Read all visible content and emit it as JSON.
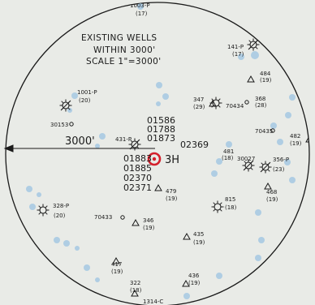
{
  "title": {
    "line1": "EXISTING WELLS",
    "line2": "WITHIN 3000'",
    "line3": "SCALE  1\"=3000'"
  },
  "center_well": "3H",
  "radius_label": "3000'",
  "center_upper_ids": [
    "01586",
    "01788",
    "01873"
  ],
  "center_lower_ids": [
    "01883",
    "01885",
    "02370",
    "02371"
  ],
  "id_02369": "02369",
  "wells": [
    {
      "id": "w1003",
      "name": "1003-P",
      "depth": "(17)",
      "symbol": "none"
    },
    {
      "id": "w141",
      "name": "141-P",
      "depth": "(17)",
      "symbol": "sun-oil"
    },
    {
      "id": "w484",
      "name": "484",
      "depth": "(19)",
      "symbol": "triangle"
    },
    {
      "id": "w1001",
      "name": "1001-P",
      "depth": "(20)",
      "symbol": "sun-oil"
    },
    {
      "id": "w30153",
      "name": "30153",
      "depth": "",
      "symbol": "circle"
    },
    {
      "id": "w347",
      "name": "347",
      "depth": "(29)",
      "symbol": "triangle"
    },
    {
      "id": "w368",
      "name": "368",
      "depth": "(28)",
      "symbol": "circle"
    },
    {
      "id": "w70434",
      "name": "70434",
      "depth": "",
      "symbol": "sun-gas"
    },
    {
      "id": "w70435",
      "name": "70435",
      "depth": "",
      "symbol": "circle"
    },
    {
      "id": "w482",
      "name": "482",
      "depth": "(19)",
      "symbol": "triangle"
    },
    {
      "id": "w431",
      "name": "431-P",
      "depth": "",
      "symbol": "sun-oil"
    },
    {
      "id": "w481",
      "name": "481",
      "depth": "(18)",
      "symbol": "none"
    },
    {
      "id": "w30027",
      "name": "30027",
      "depth": "",
      "symbol": "sun-oil"
    },
    {
      "id": "w356",
      "name": "356-P",
      "depth": "(23)",
      "symbol": "sun-oil"
    },
    {
      "id": "w468",
      "name": "468",
      "depth": "(19)",
      "symbol": "triangle"
    },
    {
      "id": "w479",
      "name": "479",
      "depth": "(19)",
      "symbol": "triangle"
    },
    {
      "id": "w328",
      "name": "328-P",
      "depth": "(20)",
      "symbol": "sun-gas"
    },
    {
      "id": "w815",
      "name": "815",
      "depth": "(18)",
      "symbol": "sun-gas"
    },
    {
      "id": "w70433",
      "name": "70433",
      "depth": "",
      "symbol": "circle"
    },
    {
      "id": "w346",
      "name": "346",
      "depth": "(19)",
      "symbol": "triangle"
    },
    {
      "id": "w435",
      "name": "435",
      "depth": "(19)",
      "symbol": "triangle"
    },
    {
      "id": "w417",
      "name": "417",
      "depth": "(19)",
      "symbol": "triangle"
    },
    {
      "id": "w436",
      "name": "436",
      "depth": "(19)",
      "symbol": "triangle"
    },
    {
      "id": "w322",
      "name": "322",
      "depth": "(18)",
      "symbol": "triangle"
    },
    {
      "id": "w1314",
      "name": "1314-C",
      "depth": "",
      "symbol": "none"
    }
  ],
  "colors": {
    "background": "#e9ebe7",
    "ink": "#1a1a1a",
    "target_red": "#d4202c",
    "blue_marker": "#7fb3d8"
  }
}
